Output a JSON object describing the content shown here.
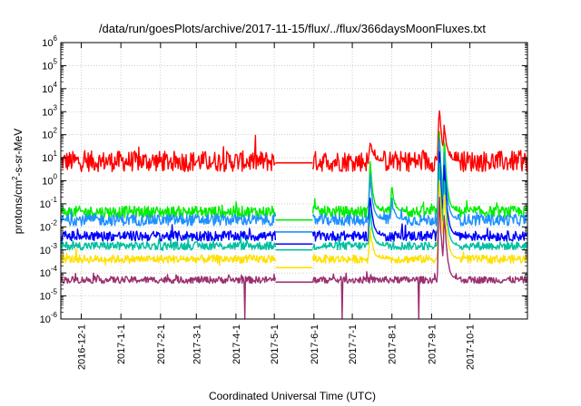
{
  "chart_data": {
    "type": "line",
    "title": "/data/run/goesPlots/archive/2017-11-15/flux/../flux/366daysMoonFluxes.txt",
    "xlabel": "Coordinated Universal Time (UTC)",
    "ylabel_base": "protons/cm",
    "ylabel_exp": "2",
    "ylabel_rest": "-s-sr-MeV",
    "yscale": "log",
    "ylim": [
      1e-06,
      1000000.0
    ],
    "xlim": [
      "2016-11-15",
      "2017-11-15"
    ],
    "grid": true,
    "legend": "none",
    "y_ticks": [
      {
        "base": "10",
        "exp": "-6",
        "value": 1e-06
      },
      {
        "base": "10",
        "exp": "-5",
        "value": 1e-05
      },
      {
        "base": "10",
        "exp": "-4",
        "value": 0.0001
      },
      {
        "base": "10",
        "exp": "-3",
        "value": 0.001
      },
      {
        "base": "10",
        "exp": "-2",
        "value": 0.01
      },
      {
        "base": "10",
        "exp": "-1",
        "value": 0.1
      },
      {
        "base": "10",
        "exp": "0",
        "value": 1
      },
      {
        "base": "10",
        "exp": "1",
        "value": 10
      },
      {
        "base": "10",
        "exp": "2",
        "value": 100
      },
      {
        "base": "10",
        "exp": "3",
        "value": 1000
      },
      {
        "base": "10",
        "exp": "4",
        "value": 10000
      },
      {
        "base": "10",
        "exp": "5",
        "value": 100000
      },
      {
        "base": "10",
        "exp": "6",
        "value": 1000000
      }
    ],
    "x_ticks": [
      {
        "label": "2016-12-1",
        "date": "2016-12-01"
      },
      {
        "label": "2017-1-1",
        "date": "2017-01-01"
      },
      {
        "label": "2017-2-1",
        "date": "2017-02-01"
      },
      {
        "label": "2017-3-1",
        "date": "2017-03-01"
      },
      {
        "label": "2017-4-1",
        "date": "2017-04-01"
      },
      {
        "label": "2017-5-1",
        "date": "2017-05-01"
      },
      {
        "label": "2017-6-1",
        "date": "2017-06-01"
      },
      {
        "label": "2017-7-1",
        "date": "2017-07-01"
      },
      {
        "label": "2017-8-1",
        "date": "2017-08-01"
      },
      {
        "label": "2017-9-1",
        "date": "2017-09-01"
      },
      {
        "label": "2017-10-1",
        "date": "2017-10-01"
      }
    ],
    "data_gap": [
      "2017-05-01",
      "2017-06-01"
    ],
    "series": [
      {
        "color": "#ff0000",
        "base": 7,
        "noise_decades": 0.45,
        "gap_value": 6,
        "events": [
          {
            "date": "2017-07-15",
            "peak": 60
          },
          {
            "date": "2017-09-07",
            "peak": 2000
          },
          {
            "date": "2017-09-11",
            "peak": 300
          }
        ]
      },
      {
        "color": "#00ee00",
        "base": 0.045,
        "noise_decades": 0.25,
        "gap_value": 0.02,
        "events": [
          {
            "date": "2017-07-15",
            "peak": 8
          },
          {
            "date": "2017-08-01",
            "peak": 0.6
          },
          {
            "date": "2017-09-07",
            "peak": 200
          },
          {
            "date": "2017-09-11",
            "peak": 80
          }
        ]
      },
      {
        "color": "#1e90ff",
        "base": 0.02,
        "noise_decades": 0.25,
        "gap_value": 0.006,
        "events": [
          {
            "date": "2017-07-15",
            "peak": 2
          },
          {
            "date": "2017-08-01",
            "peak": 0.15
          },
          {
            "date": "2017-09-07",
            "peak": 100
          },
          {
            "date": "2017-09-11",
            "peak": 30
          }
        ]
      },
      {
        "color": "#0000ff",
        "base": 0.004,
        "noise_decades": 0.22,
        "gap_value": 0.0018,
        "events": [
          {
            "date": "2017-07-15",
            "peak": 0.3
          },
          {
            "date": "2017-09-07",
            "peak": 40
          },
          {
            "date": "2017-09-11",
            "peak": 8
          }
        ]
      },
      {
        "color": "#00c0a0",
        "base": 0.0015,
        "noise_decades": 0.18,
        "gap_value": 0.001,
        "events": [
          {
            "date": "2017-07-15",
            "peak": 0.05
          },
          {
            "date": "2017-09-07",
            "peak": 10
          },
          {
            "date": "2017-09-11",
            "peak": 2
          }
        ]
      },
      {
        "color": "#ffe000",
        "base": 0.0004,
        "noise_decades": 0.18,
        "gap_value": 0.00017,
        "events": [
          {
            "date": "2017-07-15",
            "peak": 0.01
          },
          {
            "date": "2017-09-07",
            "peak": 3
          },
          {
            "date": "2017-09-11",
            "peak": 0.5
          }
        ]
      },
      {
        "color": "#9a3070",
        "base": 5e-05,
        "noise_decades": 0.15,
        "gap_value": 4e-05,
        "events": [
          {
            "date": "2017-09-07",
            "peak": 0.3
          },
          {
            "date": "2017-09-11",
            "peak": 0.05
          }
        ],
        "dropouts": [
          "2017-04-08",
          "2017-06-23",
          "2017-08-22"
        ]
      }
    ]
  }
}
